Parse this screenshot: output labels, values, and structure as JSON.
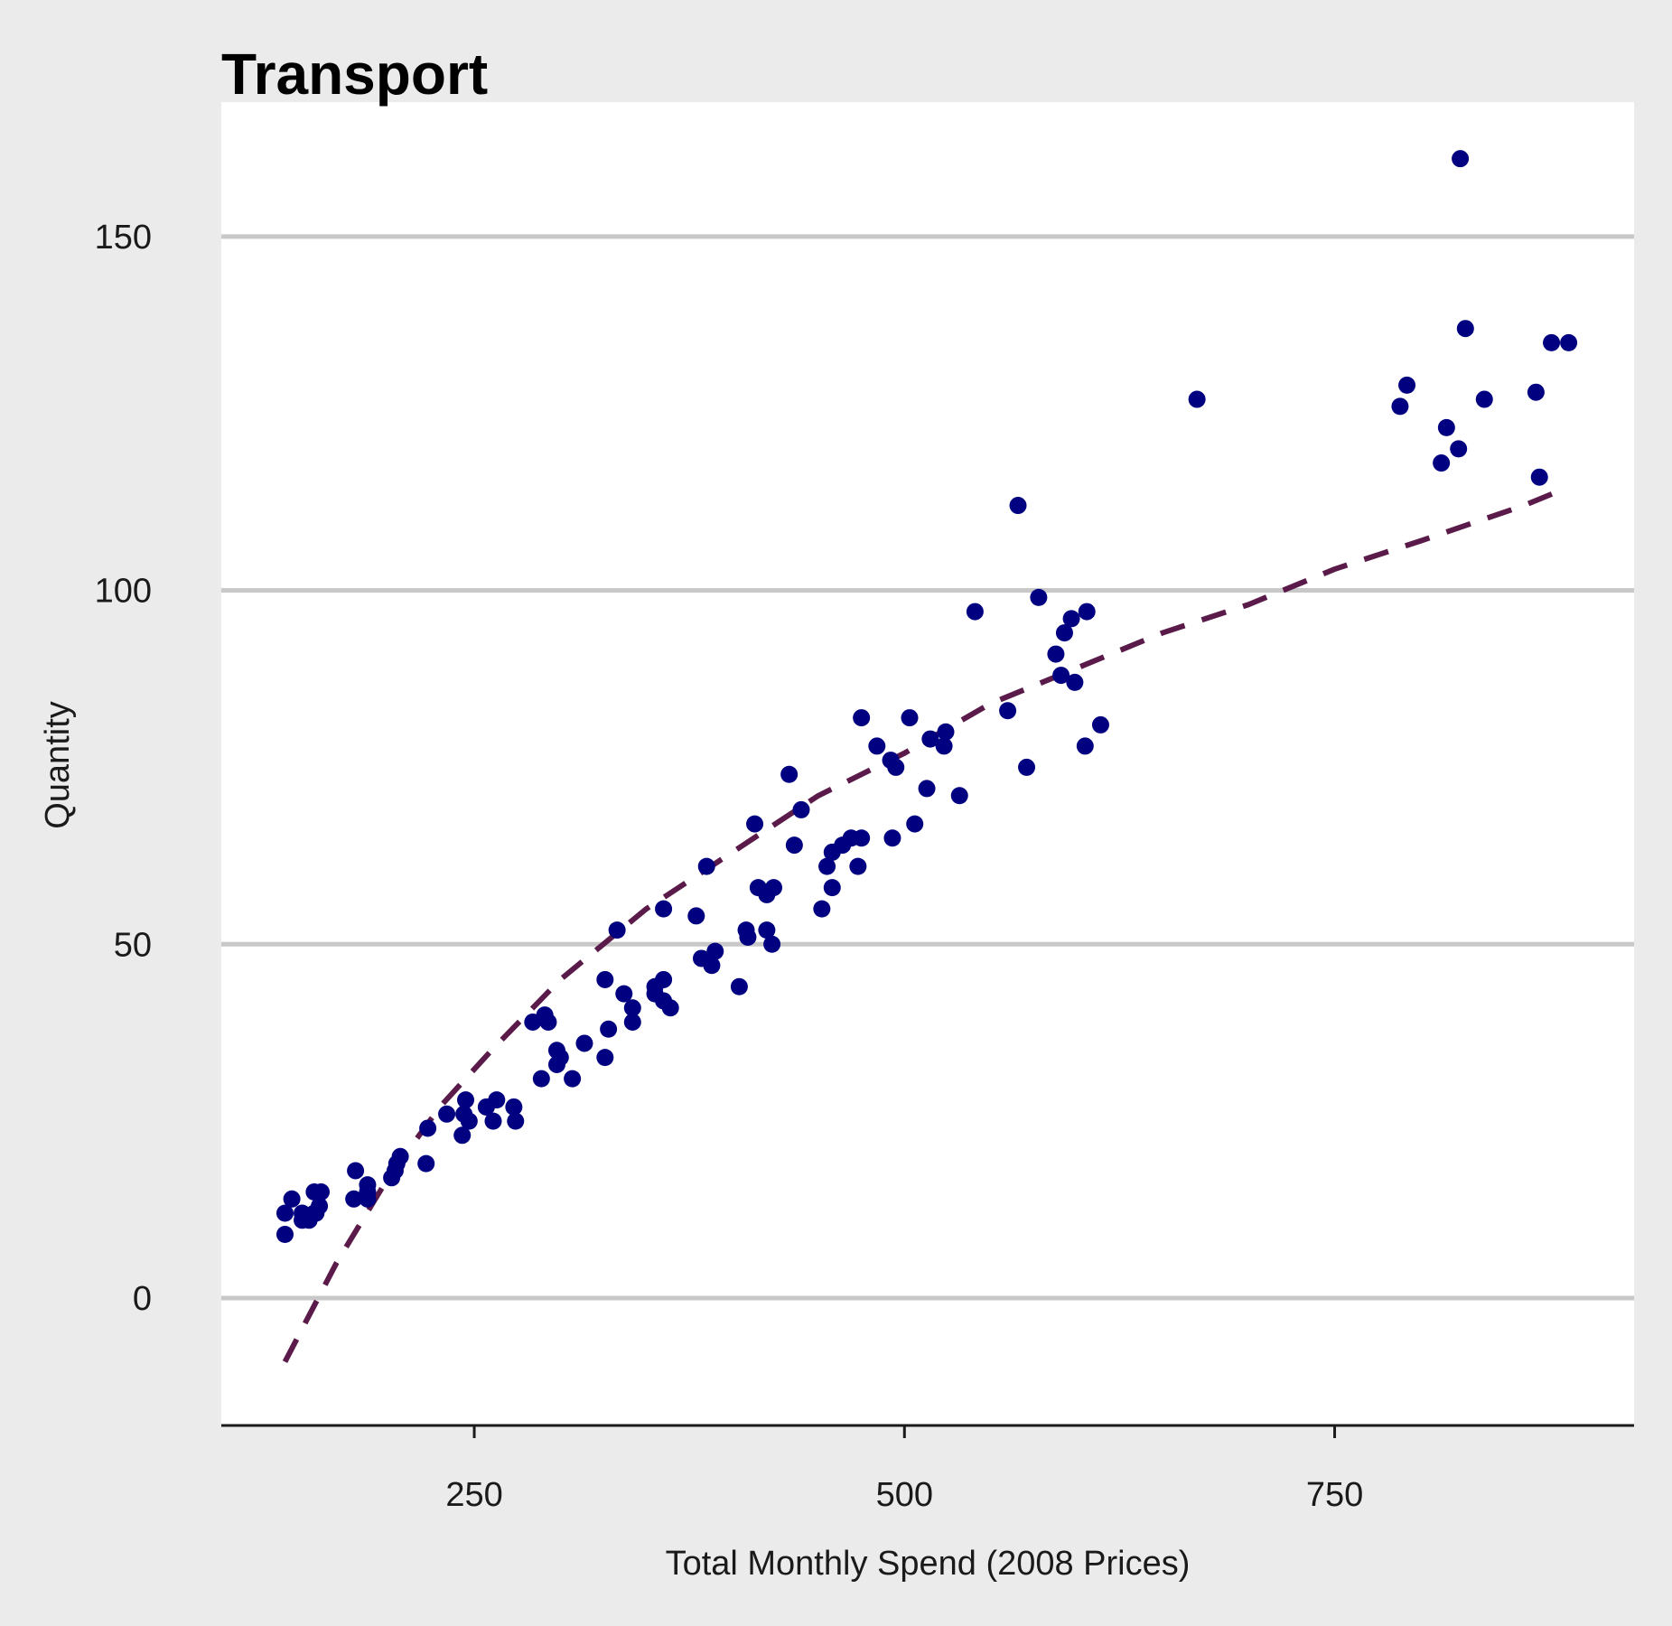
{
  "chart_data": {
    "type": "scatter",
    "title": "Transport",
    "xlabel": "Total Monthly Spend (2008 Prices)",
    "ylabel": "Quantity",
    "xlim": [
      103,
      924
    ],
    "ylim": [
      -18,
      169
    ],
    "x_ticks": [
      250,
      500,
      750
    ],
    "y_ticks": [
      0,
      50,
      100,
      150
    ],
    "grid": "horizontal major",
    "colors": {
      "background": "#ebebeb",
      "panel": "#ffffff",
      "grid": "#c8c8c8",
      "points": "#000080",
      "trend": "#5a1a4a"
    },
    "series": [
      {
        "kind": "points",
        "x": [
          140,
          144,
          140,
          150,
          154,
          157,
          150,
          160,
          157,
          158,
          161,
          180,
          188,
          181,
          188,
          188,
          202,
          204,
          207,
          205,
          223,
          222,
          234,
          243,
          244,
          247,
          245,
          261,
          263,
          257,
          274,
          273,
          284,
          291,
          293,
          289,
          298,
          300,
          298,
          307,
          314,
          326,
          328,
          326,
          333,
          337,
          342,
          342,
          355,
          355,
          360,
          360,
          360,
          364,
          379,
          382,
          385,
          388,
          390,
          404,
          408,
          409,
          413,
          415,
          420,
          420,
          424,
          423,
          433,
          436,
          440,
          452,
          455,
          458,
          458,
          464,
          469,
          473,
          475,
          475,
          484,
          492,
          493,
          495,
          503,
          506,
          513,
          515,
          523,
          524,
          532,
          541,
          560,
          566,
          571,
          578,
          588,
          591,
          593,
          597,
          599,
          605,
          606,
          614,
          670,
          788,
          792,
          812,
          815,
          822,
          823,
          826,
          837,
          867,
          869,
          876,
          886
        ],
        "y": [
          12,
          14,
          9,
          12,
          11,
          15,
          11,
          13,
          12,
          12,
          15,
          14,
          15,
          18,
          14,
          16,
          17,
          18,
          20,
          19,
          24,
          19,
          26,
          23,
          26,
          25,
          28,
          25,
          28,
          27,
          25,
          27,
          39,
          40,
          39,
          31,
          35,
          34,
          33,
          31,
          36,
          45,
          38,
          34,
          52,
          43,
          41,
          39,
          43,
          44,
          42,
          55,
          45,
          41,
          54,
          48,
          61,
          47,
          49,
          44,
          52,
          51,
          67,
          58,
          57,
          52,
          58,
          50,
          74,
          64,
          69,
          55,
          61,
          58,
          63,
          64,
          65,
          61,
          65,
          82,
          78,
          76,
          65,
          75,
          82,
          67,
          72,
          79,
          78,
          80,
          71,
          97,
          83,
          112,
          75,
          99,
          91,
          88,
          94,
          96,
          87,
          78,
          97,
          81,
          127,
          126,
          129,
          118,
          123,
          120,
          161,
          137,
          127,
          128,
          116,
          135,
          135
        ]
      },
      {
        "kind": "dashed-line",
        "x": [
          140,
          170,
          200,
          230,
          260,
          300,
          350,
          400,
          450,
          500,
          550,
          600,
          650,
          700,
          750,
          800,
          860,
          880
        ],
        "y": [
          -9,
          5,
          17,
          27,
          35,
          45,
          55,
          63,
          71,
          77,
          84,
          89,
          94,
          98,
          103,
          107,
          112,
          114
        ]
      }
    ]
  }
}
